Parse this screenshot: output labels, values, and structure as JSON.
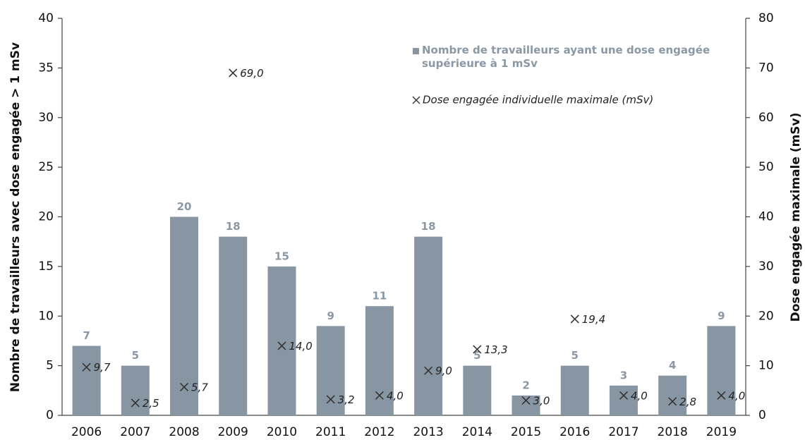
{
  "chart_data": {
    "type": "bar",
    "y_label": "Nombre de travailleurs avec dose engagée > 1 mSv",
    "y2_label": "Dose engagée maximale (mSv)",
    "categories": [
      "2006",
      "2007",
      "2008",
      "2009",
      "2010",
      "2011",
      "2012",
      "2013",
      "2014",
      "2015",
      "2016",
      "2017",
      "2018",
      "2019"
    ],
    "series": [
      {
        "name": "Nombre de travailleurs ayant une dose engagée supérieure à 1 mSv",
        "type": "bar",
        "color": "#8896a3",
        "values": [
          7,
          5,
          20,
          18,
          15,
          9,
          11,
          18,
          5,
          2,
          5,
          3,
          4,
          9
        ]
      },
      {
        "name": "Dose engagée individuelle maximale (mSv)",
        "type": "scatter",
        "axis": "y2",
        "color": "#333333",
        "values": [
          9.7,
          2.5,
          5.7,
          69.0,
          14.0,
          3.2,
          4.0,
          9.0,
          13.3,
          3.0,
          19.4,
          4.0,
          2.8,
          4.0
        ],
        "value_labels": [
          "9,7",
          "2,5",
          "5,7",
          "69,0",
          "14,0",
          "3,2",
          "4,0",
          "9,0",
          "13,3",
          "3,0",
          "19,4",
          "4,0",
          "2,8",
          "4,0"
        ]
      }
    ],
    "ylim": [
      0,
      40
    ],
    "yticks": [
      0,
      5,
      10,
      15,
      20,
      25,
      30,
      35,
      40
    ],
    "y2lim": [
      0,
      80
    ],
    "y2ticks": [
      0,
      10,
      20,
      30,
      40,
      50,
      60,
      70,
      80
    ],
    "legend": "top-right",
    "grid": false
  }
}
